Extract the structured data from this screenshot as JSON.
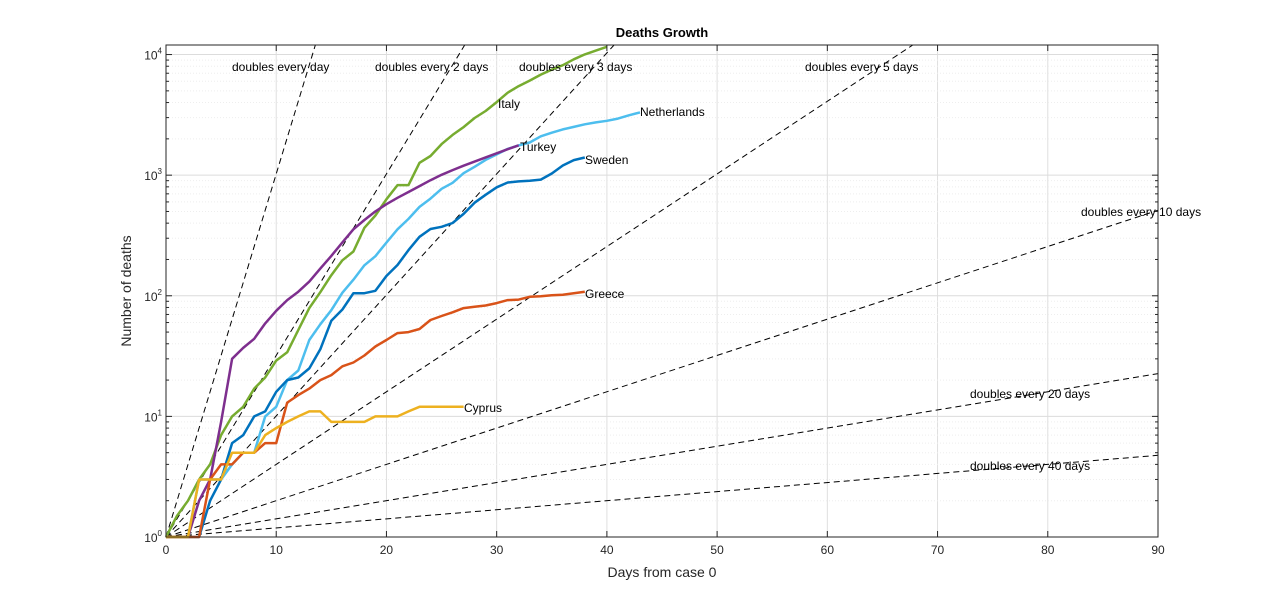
{
  "chart_data": {
    "type": "line",
    "title": "Deaths Growth",
    "xlabel": "Days from case 0",
    "ylabel": "Number of deaths",
    "xlim": [
      0,
      90
    ],
    "ylim": [
      1,
      12000
    ],
    "yscale": "log",
    "grid": "on",
    "xticks": [
      "0",
      "10",
      "20",
      "30",
      "40",
      "50",
      "60",
      "70",
      "80",
      "90"
    ],
    "yticks": [
      {
        "base": "10",
        "exp": "0"
      },
      {
        "base": "10",
        "exp": "1"
      },
      {
        "base": "10",
        "exp": "2"
      },
      {
        "base": "10",
        "exp": "3"
      },
      {
        "base": "10",
        "exp": "4"
      }
    ],
    "series": [
      {
        "name": "Italy",
        "color": "#77ac30",
        "x": [
          0,
          1,
          2,
          3,
          4,
          5,
          6,
          7,
          8,
          9,
          10,
          11,
          12,
          13,
          14,
          15,
          16,
          17,
          18,
          19,
          20,
          21,
          22,
          23,
          24,
          25,
          26,
          27,
          28,
          29,
          30,
          31,
          32,
          33,
          34,
          35,
          36,
          37,
          38,
          39,
          40
        ],
        "y": [
          1,
          1.5,
          2,
          3,
          4,
          7,
          10,
          12,
          17,
          21,
          29,
          34,
          52,
          79,
          107,
          148,
          197,
          233,
          366,
          463,
          631,
          827,
          827,
          1266,
          1441,
          1809,
          2158,
          2503,
          2978,
          3405,
          4032,
          4825,
          5476,
          6077,
          6820,
          7503,
          8165,
          9134,
          10023,
          10779,
          11591
        ]
      },
      {
        "name": "Netherlands",
        "color": "#4dbeee",
        "x": [
          0,
          1,
          2,
          3,
          4,
          5,
          6,
          7,
          8,
          9,
          10,
          11,
          12,
          13,
          14,
          15,
          16,
          17,
          18,
          19,
          20,
          21,
          22,
          23,
          24,
          25,
          26,
          27,
          28,
          29,
          30,
          31,
          32,
          33,
          34,
          35,
          36,
          37,
          38,
          39,
          40,
          41,
          42,
          43
        ],
        "y": [
          1,
          1,
          1,
          3,
          3,
          3,
          4,
          5,
          5,
          10,
          12,
          20,
          24,
          43,
          58,
          76,
          106,
          136,
          179,
          213,
          276,
          356,
          434,
          546,
          639,
          771,
          864,
          1039,
          1173,
          1339,
          1487,
          1651,
          1766,
          1867,
          2101,
          2248,
          2396,
          2511,
          2643,
          2737,
          2823,
          2945,
          3134,
          3315
        ]
      },
      {
        "name": "Turkey",
        "color": "#7e2f8e",
        "x": [
          0,
          1,
          2,
          3,
          4,
          5,
          6,
          7,
          8,
          9,
          10,
          11,
          12,
          13,
          14,
          15,
          16,
          17,
          18,
          19,
          20,
          21,
          22,
          23,
          24,
          25,
          26,
          27,
          28,
          29,
          30,
          31,
          32
        ],
        "y": [
          1,
          1,
          1,
          2,
          3,
          9,
          30,
          37,
          44,
          59,
          75,
          92,
          108,
          131,
          168,
          214,
          277,
          356,
          425,
          501,
          574,
          649,
          725,
          812,
          908,
          1006,
          1101,
          1198,
          1296,
          1403,
          1518,
          1643,
          1769
        ]
      },
      {
        "name": "Sweden",
        "color": "#0072bd",
        "x": [
          0,
          1,
          2,
          3,
          4,
          5,
          6,
          7,
          8,
          9,
          10,
          11,
          12,
          13,
          14,
          15,
          16,
          17,
          18,
          19,
          20,
          21,
          22,
          23,
          24,
          25,
          26,
          27,
          28,
          29,
          30,
          31,
          32,
          33,
          34,
          35,
          36,
          37,
          38
        ],
        "y": [
          1,
          1,
          1,
          1,
          2,
          3,
          6,
          7,
          10,
          11,
          16,
          20,
          21,
          25,
          36,
          62,
          77,
          105,
          105,
          110,
          146,
          180,
          239,
          308,
          358,
          373,
          401,
          477,
          591,
          687,
          793,
          870,
          887,
          899,
          919,
          1033,
          1203,
          1333,
          1400
        ]
      },
      {
        "name": "Greece",
        "color": "#d95319",
        "x": [
          0,
          1,
          2,
          3,
          4,
          5,
          6,
          7,
          8,
          9,
          10,
          11,
          12,
          13,
          14,
          15,
          16,
          17,
          18,
          19,
          20,
          21,
          22,
          23,
          24,
          25,
          26,
          27,
          28,
          29,
          30,
          31,
          32,
          33,
          34,
          35,
          36,
          37,
          38
        ],
        "y": [
          1,
          1,
          1,
          1,
          3,
          4,
          4,
          5,
          5,
          6,
          6,
          13,
          15,
          17,
          20,
          22,
          26,
          28,
          32,
          38,
          43,
          49,
          50,
          53,
          63,
          68,
          73,
          79,
          81,
          83,
          87,
          92,
          93,
          98,
          99,
          101,
          102,
          105,
          108
        ]
      },
      {
        "name": "Cyprus",
        "color": "#edb120",
        "x": [
          0,
          1,
          2,
          3,
          4,
          5,
          6,
          7,
          8,
          9,
          10,
          11,
          12,
          13,
          14,
          15,
          16,
          17,
          18,
          19,
          20,
          21,
          22,
          23,
          24,
          25,
          26,
          27
        ],
        "y": [
          1,
          1,
          1,
          3,
          3,
          3,
          5,
          5,
          5,
          7,
          8,
          9,
          10,
          11,
          11,
          9,
          9,
          9,
          9,
          10,
          10,
          10,
          11,
          12,
          12,
          12,
          12,
          12
        ]
      }
    ],
    "reference_lines": [
      {
        "label": "doubles every day",
        "doubling_days": 1
      },
      {
        "label": "doubles every 2 days",
        "doubling_days": 2
      },
      {
        "label": "doubles every 3 days",
        "doubling_days": 3
      },
      {
        "label": "doubles every 5 days",
        "doubling_days": 5
      },
      {
        "label": "doubles every 10 days",
        "doubling_days": 10
      },
      {
        "label": "doubles every 20 days",
        "doubling_days": 20
      },
      {
        "label": "doubles every 40 days",
        "doubling_days": 40
      }
    ]
  }
}
